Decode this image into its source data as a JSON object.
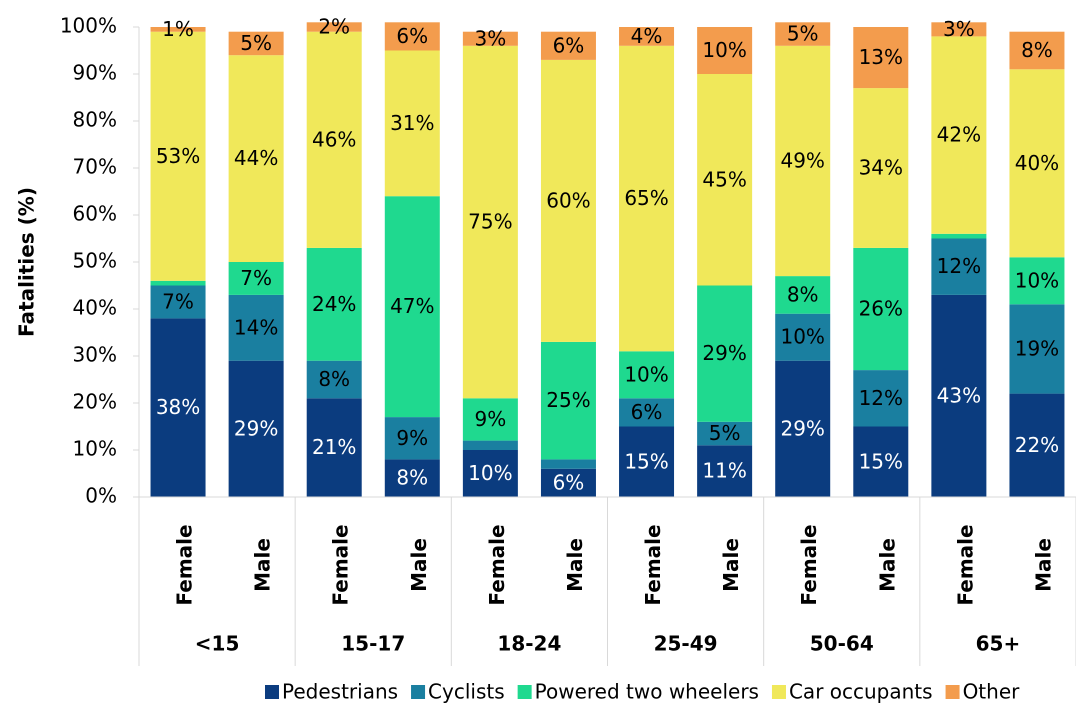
{
  "chart_data": {
    "type": "stacked-bar",
    "y_label": "Fatalities (%)",
    "categories": [
      "Female",
      "Male",
      "Female",
      "Male",
      "Female",
      "Male",
      "Female",
      "Male",
      "Female",
      "Male",
      "Female",
      "Male"
    ],
    "groups": [
      "<15",
      "15-17",
      "18-24",
      "25-49",
      "50-64",
      "65+"
    ],
    "series": [
      {
        "name": "Pedestrians",
        "color": "#0b3c7f",
        "label_color": "#ffffff",
        "values": [
          38,
          29,
          21,
          8,
          10,
          6,
          15,
          11,
          29,
          15,
          43,
          22
        ],
        "value_labels": [
          "38%",
          "29%",
          "21%",
          "8%",
          "10%",
          "6%",
          "15%",
          "11%",
          "29%",
          "15%",
          "43%",
          "22%"
        ]
      },
      {
        "name": "Cyclists",
        "color": "#1a7fa0",
        "label_color": "#000000",
        "values": [
          7,
          14,
          8,
          9,
          2,
          2,
          6,
          5,
          10,
          12,
          12,
          19
        ],
        "value_labels": [
          "7%",
          "14%",
          "8%",
          "9%",
          null,
          null,
          "6%",
          "5%",
          "10%",
          "12%",
          "12%",
          "19%"
        ]
      },
      {
        "name": "Powered two wheelers",
        "color": "#1fd98f",
        "label_color": "#000000",
        "values": [
          1,
          7,
          24,
          47,
          9,
          25,
          10,
          29,
          8,
          26,
          1,
          10
        ],
        "value_labels": [
          null,
          "7%",
          "24%",
          "47%",
          "9%",
          "25%",
          "10%",
          "29%",
          "8%",
          "26%",
          null,
          "10%"
        ]
      },
      {
        "name": "Car occupants",
        "color": "#f0e85a",
        "label_color": "#000000",
        "values": [
          53,
          44,
          46,
          31,
          75,
          60,
          65,
          45,
          49,
          34,
          42,
          40
        ],
        "value_labels": [
          "53%",
          "44%",
          "46%",
          "31%",
          "75%",
          "60%",
          "65%",
          "45%",
          "49%",
          "34%",
          "42%",
          "40%"
        ]
      },
      {
        "name": "Other",
        "color": "#f39c4d",
        "label_color": "#000000",
        "values": [
          1,
          5,
          2,
          6,
          3,
          6,
          4,
          10,
          5,
          13,
          3,
          8
        ],
        "value_labels": [
          "1%",
          "5%",
          "2%",
          "6%",
          "3%",
          "6%",
          "4%",
          "10%",
          "5%",
          "13%",
          "3%",
          "8%"
        ]
      }
    ],
    "ylim": [
      0,
      100
    ],
    "yticks": [
      {
        "value": 0,
        "label": "0%"
      },
      {
        "value": 10,
        "label": "10%"
      },
      {
        "value": 20,
        "label": "20%"
      },
      {
        "value": 30,
        "label": "30%"
      },
      {
        "value": 40,
        "label": "40%"
      },
      {
        "value": 50,
        "label": "50%"
      },
      {
        "value": 60,
        "label": "60%"
      },
      {
        "value": 70,
        "label": "70%"
      },
      {
        "value": 80,
        "label": "80%"
      },
      {
        "value": 90,
        "label": "90%"
      },
      {
        "value": 100,
        "label": "100%"
      }
    ],
    "grid": false,
    "legend": "bottom"
  }
}
